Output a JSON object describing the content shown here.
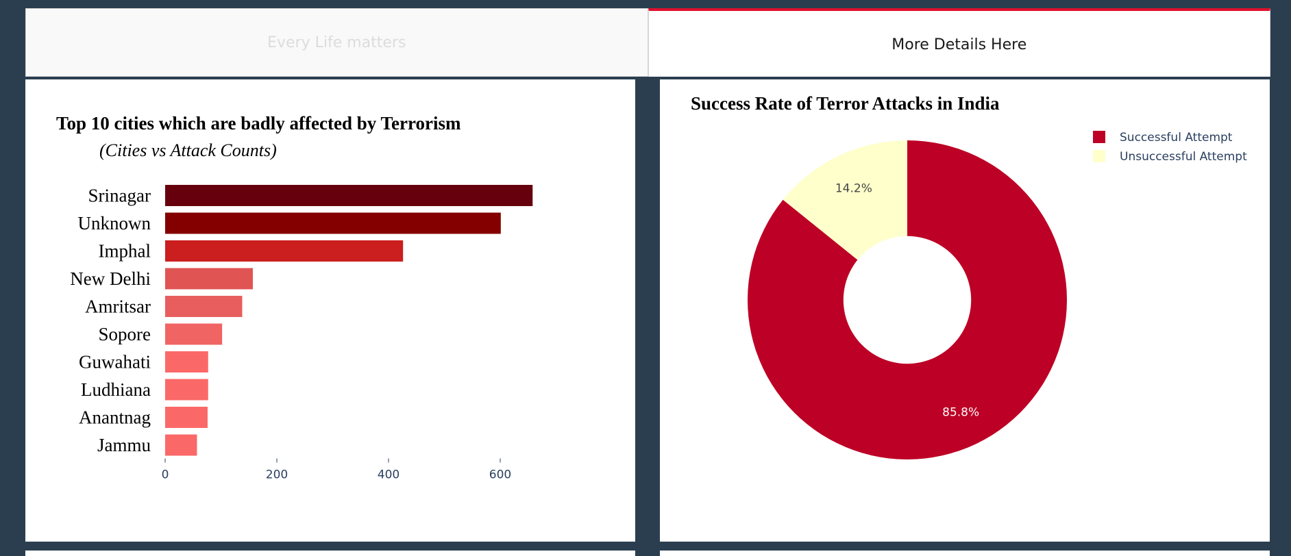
{
  "tabs": [
    {
      "label": "Every Life matters",
      "active": false
    },
    {
      "label": "More Details Here",
      "active": true
    }
  ],
  "colors": {
    "background": "#2b3e50",
    "active_tab_accent": "#e0102d",
    "successful": "#bd0026",
    "unsuccessful": "#ffffcc"
  },
  "charts": {
    "bar": {
      "title": "Top 10 cities which are badly affected by Terrorism",
      "subtitle": "(Cities vs Attack Counts)"
    },
    "pie": {
      "title": "Success Rate of Terror Attacks in India"
    }
  },
  "chart_data": [
    {
      "type": "bar",
      "orientation": "horizontal",
      "title": "Top 10 cities which are badly affected by Terrorism",
      "subtitle": "(Cities vs Attack Counts)",
      "categories": [
        "Srinagar",
        "Unknown",
        "Imphal",
        "New Delhi",
        "Amritsar",
        "Sopore",
        "Guwahati",
        "Ludhiana",
        "Anantnag",
        "Jammu"
      ],
      "values": [
        658,
        601,
        426,
        157,
        138,
        102,
        77,
        77,
        76,
        57
      ],
      "colors": [
        "#67000d",
        "#840000",
        "#cb1e1e",
        "#e05454",
        "#e85e5e",
        "#f06464",
        "#fb6868",
        "#fb6868",
        "#fb6868",
        "#fb6868"
      ],
      "x_ticks": [
        0,
        200,
        400,
        600
      ],
      "xlim": [
        0,
        690
      ],
      "grid": false
    },
    {
      "type": "pie",
      "hole": 0.4,
      "title": "Success Rate of Terror Attacks in India",
      "labels": [
        "Successful Attempt",
        "Unsuccessful Attempt"
      ],
      "values": [
        85.8,
        14.2
      ],
      "value_labels": [
        "85.8%",
        "14.2%"
      ],
      "colors": [
        "#bd0026",
        "#ffffcc"
      ],
      "legend_position": "top-right"
    }
  ]
}
